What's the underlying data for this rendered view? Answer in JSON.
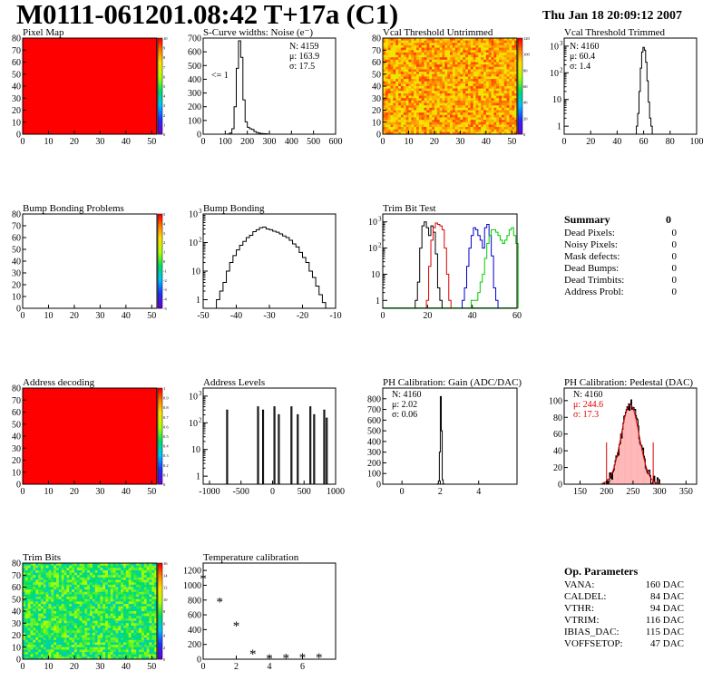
{
  "header": {
    "title": "M0111-061201.08:42 T+17a (C1)",
    "date": "Thu Jan 18 20:09:12 2007"
  },
  "colors": {
    "red_map": "#ff0000",
    "red_trim": "#dd0000",
    "blue_trim": "#0000cc",
    "green_trim": "#00cc00",
    "pedestal_fill": "#ffb0b0",
    "pedestal_fit": "#dd0000"
  },
  "chart_data": [
    {
      "id": "pixel-map",
      "type": "heatmap",
      "title": "Pixel Map",
      "xlim": [
        0,
        52
      ],
      "ylim": [
        0,
        80
      ],
      "fill": "uniform-red",
      "x_ticks": [
        "0",
        "10",
        "20",
        "30",
        "40",
        "50"
      ],
      "y_ticks": [
        "0",
        "10",
        "20",
        "30",
        "40",
        "50",
        "60",
        "70",
        "80"
      ],
      "z_ticks": [
        "0",
        "1",
        "2",
        "3",
        "4",
        "5",
        "6",
        "7",
        "8",
        "9",
        "10"
      ]
    },
    {
      "id": "scurve",
      "type": "bar",
      "title": "S-Curve widths: Noise (e⁻)",
      "xlim": [
        0,
        600
      ],
      "ylim": [
        0,
        700
      ],
      "x_ticks": [
        "0",
        "100",
        "200",
        "300",
        "400",
        "500",
        "600"
      ],
      "y_ticks": [
        "0",
        "100",
        "200",
        "300",
        "400",
        "500",
        "600",
        "700"
      ],
      "stats": [
        "N: 4159",
        "μ: 163.9",
        "σ: 17.5"
      ],
      "annotation": "<= 1",
      "centers": [
        115,
        125,
        135,
        145,
        155,
        165,
        175,
        185,
        195,
        205,
        215,
        225,
        235,
        245,
        255,
        265,
        275,
        285,
        295
      ],
      "values": [
        2,
        8,
        40,
        200,
        480,
        680,
        560,
        250,
        90,
        50,
        40,
        35,
        20,
        12,
        8,
        5,
        4,
        3,
        1
      ]
    },
    {
      "id": "vcal-untrimmed",
      "type": "heatmap",
      "title": "Vcal Threshold Untrimmed",
      "xlim": [
        0,
        52
      ],
      "ylim": [
        0,
        80
      ],
      "fill": "noise-orange-yellow",
      "x_ticks": [
        "0",
        "10",
        "20",
        "30",
        "40",
        "50"
      ],
      "y_ticks": [
        "0",
        "10",
        "20",
        "30",
        "40",
        "50",
        "60",
        "70",
        "80"
      ],
      "z_ticks": [
        "0",
        "20",
        "40",
        "60",
        "80",
        "100",
        "120"
      ]
    },
    {
      "id": "vcal-trimmed",
      "type": "bar",
      "title": "Vcal Threshold Trimmed",
      "yscale": "log",
      "xlim": [
        0,
        100
      ],
      "ylim": [
        0.5,
        2000
      ],
      "x_ticks": [
        "0",
        "20",
        "40",
        "60",
        "80",
        "100"
      ],
      "stats": [
        "N: 4160",
        "μ: 60.4",
        "σ: 1.4"
      ],
      "centers": [
        55,
        56,
        57,
        58,
        59,
        60,
        61,
        62,
        63,
        64,
        65,
        66
      ],
      "values": [
        1,
        3,
        20,
        150,
        600,
        900,
        700,
        250,
        50,
        8,
        2,
        1
      ]
    },
    {
      "id": "bump-map",
      "type": "heatmap",
      "title": "Bump Bonding Problems",
      "xlim": [
        0,
        52
      ],
      "ylim": [
        0,
        80
      ],
      "fill": "empty",
      "x_ticks": [
        "0",
        "10",
        "20",
        "30",
        "40",
        "50"
      ],
      "y_ticks": [
        "0",
        "10",
        "20",
        "30",
        "40",
        "50",
        "60",
        "70",
        "80"
      ],
      "z_ticks": [
        "-5",
        "-4",
        "-3",
        "-2",
        "-1",
        "0",
        "1",
        "2",
        "3",
        "4",
        "5"
      ]
    },
    {
      "id": "bump-bonding",
      "type": "bar",
      "title": "Bump Bonding",
      "yscale": "log",
      "xlim": [
        -50,
        -10
      ],
      "ylim": [
        0.5,
        1000
      ],
      "x_ticks": [
        "-50",
        "-40",
        "-30",
        "-20",
        "-10"
      ],
      "centers": [
        -45.5,
        -44.5,
        -43.5,
        -42.5,
        -41.5,
        -40.5,
        -39.5,
        -38.5,
        -37.5,
        -36.5,
        -35.5,
        -34.5,
        -33.5,
        -32.5,
        -31.5,
        -30.5,
        -29.5,
        -28.5,
        -27.5,
        -26.5,
        -25.5,
        -24.5,
        -23.5,
        -22.5,
        -21.5,
        -20.5,
        -19.5,
        -18.5,
        -17.5,
        -16.5,
        -15.5,
        -14.5,
        -13.5
      ],
      "values": [
        1,
        2,
        4,
        10,
        20,
        35,
        55,
        80,
        110,
        150,
        180,
        240,
        280,
        330,
        350,
        300,
        280,
        250,
        230,
        200,
        170,
        150,
        120,
        90,
        70,
        45,
        30,
        20,
        10,
        6,
        3,
        1.5,
        0.8
      ]
    },
    {
      "id": "trim-bit-test",
      "type": "line",
      "title": "Trim Bit Test",
      "yscale": "log",
      "xlim": [
        0,
        60
      ],
      "ylim": [
        0.5,
        2000
      ],
      "x_ticks": [
        "0",
        "20",
        "40",
        "60"
      ],
      "series": [
        {
          "color": "#000000",
          "x": [
            15,
            16,
            17,
            18,
            19,
            20,
            21,
            22,
            23,
            24,
            25,
            26
          ],
          "y": [
            1,
            5,
            100,
            700,
            1000,
            600,
            300,
            700,
            400,
            60,
            3,
            1
          ]
        },
        {
          "color": "#dd0000",
          "x": [
            20,
            21,
            22,
            23,
            24,
            25,
            26,
            27,
            28,
            29,
            30
          ],
          "y": [
            1,
            20,
            200,
            600,
            900,
            800,
            700,
            500,
            100,
            10,
            1
          ]
        },
        {
          "color": "#0000cc",
          "x": [
            36,
            37,
            38,
            39,
            40,
            41,
            42,
            43,
            44,
            45,
            46,
            47,
            48,
            49,
            50,
            51
          ],
          "y": [
            1,
            3,
            20,
            100,
            300,
            600,
            500,
            300,
            200,
            100,
            600,
            800,
            300,
            50,
            3,
            1
          ]
        },
        {
          "color": "#00cc00",
          "x": [
            40,
            41,
            42,
            43,
            44,
            45,
            46,
            47,
            48,
            49,
            50,
            51,
            52,
            53,
            54,
            55,
            56,
            57,
            58,
            59,
            60
          ],
          "y": [
            1,
            1,
            1,
            2,
            5,
            10,
            40,
            150,
            300,
            500,
            500,
            400,
            300,
            200,
            150,
            200,
            300,
            500,
            600,
            300,
            150
          ]
        }
      ]
    },
    {
      "id": "address-map",
      "type": "heatmap",
      "title": "Address decoding",
      "xlim": [
        0,
        52
      ],
      "ylim": [
        0,
        80
      ],
      "fill": "uniform-red",
      "x_ticks": [
        "0",
        "10",
        "20",
        "30",
        "40",
        "50"
      ],
      "y_ticks": [
        "0",
        "10",
        "20",
        "30",
        "40",
        "50",
        "60",
        "70",
        "80"
      ],
      "z_ticks": [
        "0",
        "0.1",
        "0.2",
        "0.3",
        "0.4",
        "0.5",
        "0.6",
        "0.7",
        "0.8",
        "0.9",
        "1"
      ]
    },
    {
      "id": "address-levels",
      "type": "bar",
      "title": "Address Levels",
      "yscale": "log",
      "xlim": [
        -1100,
        1000
      ],
      "ylim": [
        0.5,
        2000
      ],
      "x_ticks": [
        "-1000",
        "-500",
        "0",
        "500",
        "1000"
      ],
      "peaks": [
        -720,
        -230,
        -150,
        30,
        100,
        300,
        400,
        600,
        660,
        820,
        860
      ],
      "peak_values": [
        300,
        400,
        300,
        400,
        200,
        400,
        200,
        400,
        200,
        300,
        150
      ]
    },
    {
      "id": "ph-gain",
      "type": "bar",
      "title": "PH Calibration: Gain (ADC/DAC)",
      "xlim": [
        -1,
        6
      ],
      "ylim": [
        0,
        900
      ],
      "x_ticks": [
        "0",
        "2",
        "4"
      ],
      "y_ticks": [
        "0",
        "100",
        "200",
        "300",
        "400",
        "500",
        "600",
        "700",
        "800"
      ],
      "stats": [
        "N: 4160",
        "μ: 2.02",
        "σ: 0.06"
      ],
      "centers": [
        1.875,
        1.925,
        1.975,
        2.025,
        2.075,
        2.125,
        2.175
      ],
      "values": [
        3,
        30,
        300,
        820,
        500,
        40,
        2
      ]
    },
    {
      "id": "ph-pedestal",
      "type": "bar",
      "title": "PH Calibration: Pedestal (DAC)",
      "xlim": [
        120,
        370
      ],
      "ylim": [
        0,
        115
      ],
      "x_ticks": [
        "150",
        "200",
        "250",
        "300",
        "350"
      ],
      "y_ticks": [
        "0",
        "20",
        "40",
        "60",
        "80",
        "100"
      ],
      "stats": [
        "N: 4160",
        "μ: 244.6",
        "σ: 17.3"
      ],
      "mu": 244.6,
      "sigma": 17.3,
      "amplitude": 95,
      "markers": [
        200,
        288
      ]
    },
    {
      "id": "trim-bits",
      "type": "heatmap",
      "title": "Trim Bits",
      "xlim": [
        0,
        52
      ],
      "ylim": [
        0,
        80
      ],
      "fill": "noise-green",
      "x_ticks": [
        "0",
        "10",
        "20",
        "30",
        "40",
        "50"
      ],
      "y_ticks": [
        "0",
        "10",
        "20",
        "30",
        "40",
        "50",
        "60",
        "70",
        "80"
      ],
      "z_ticks": [
        "0",
        "2",
        "4",
        "6",
        "8",
        "10",
        "12",
        "14",
        "16"
      ]
    },
    {
      "id": "temperature",
      "type": "scatter",
      "title": "Temperature calibration",
      "xlim": [
        0,
        8
      ],
      "ylim": [
        0,
        1300
      ],
      "x_ticks": [
        "0",
        "2",
        "4",
        "6"
      ],
      "y_ticks": [
        "0",
        "200",
        "400",
        "600",
        "800",
        "1000",
        "1200"
      ],
      "x": [
        0,
        1,
        2,
        3,
        4,
        5,
        6,
        7
      ],
      "y": [
        1110,
        800,
        470,
        90,
        30,
        35,
        45,
        45
      ]
    }
  ],
  "summary": {
    "heading": "Summary",
    "heading_value": "0",
    "rows": [
      {
        "label": "Dead Pixels:",
        "value": "0"
      },
      {
        "label": "Noisy Pixels:",
        "value": "0"
      },
      {
        "label": "Mask defects:",
        "value": "0"
      },
      {
        "label": "Dead Bumps:",
        "value": "0"
      },
      {
        "label": "Dead Trimbits:",
        "value": "0"
      },
      {
        "label": "Address Probl:",
        "value": "0"
      }
    ]
  },
  "op_params": {
    "heading": "Op. Parameters",
    "rows": [
      {
        "label": "VANA:",
        "value": "160 DAC"
      },
      {
        "label": "CALDEL:",
        "value": "84 DAC"
      },
      {
        "label": "VTHR:",
        "value": "94 DAC"
      },
      {
        "label": "VTRIM:",
        "value": "116 DAC"
      },
      {
        "label": "IBIAS_DAC:",
        "value": "115 DAC"
      },
      {
        "label": "VOFFSETOP:",
        "value": "47 DAC"
      }
    ]
  }
}
